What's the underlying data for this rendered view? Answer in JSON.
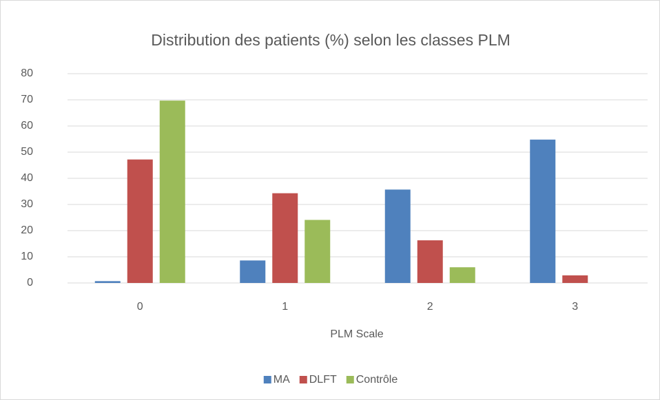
{
  "chart_data": {
    "type": "bar",
    "title": "Distribution des patients (%) selon les classes PLM",
    "x_label": "PLM Scale",
    "categories": [
      "0",
      "1",
      "2",
      "3"
    ],
    "series": [
      {
        "name": "MA",
        "color": "#4f81bd",
        "values": [
          0.7,
          8.6,
          35.7,
          54.8
        ]
      },
      {
        "name": "DLFT",
        "color": "#c0504d",
        "values": [
          47.2,
          34.3,
          16.3,
          2.9
        ]
      },
      {
        "name": "Contrôle",
        "color": "#9bbb59",
        "values": [
          69.7,
          24.1,
          6.0,
          0
        ]
      }
    ],
    "ylim": [
      0,
      80
    ],
    "yticks": [
      0,
      10,
      20,
      30,
      40,
      50,
      60,
      70,
      80
    ],
    "grid": true,
    "legend": "bottom"
  }
}
